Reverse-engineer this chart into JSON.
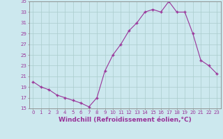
{
  "x": [
    0,
    1,
    2,
    3,
    4,
    5,
    6,
    7,
    8,
    9,
    10,
    11,
    12,
    13,
    14,
    15,
    16,
    17,
    18,
    19,
    20,
    21,
    22,
    23
  ],
  "y": [
    20.0,
    19.0,
    18.5,
    17.5,
    17.0,
    16.5,
    16.0,
    15.3,
    17.0,
    22.0,
    25.0,
    27.0,
    29.5,
    31.0,
    33.0,
    33.5,
    33.0,
    35.0,
    33.0,
    33.0,
    29.0,
    24.0,
    23.0,
    21.5
  ],
  "line_color": "#993399",
  "marker": "+",
  "marker_size": 3,
  "background_color": "#cce8ee",
  "grid_color": "#aacccc",
  "xlabel": "Windchill (Refroidissement éolien,°C)",
  "ylim": [
    15,
    35
  ],
  "xlim": [
    -0.5,
    23.5
  ],
  "yticks": [
    15,
    17,
    19,
    21,
    23,
    25,
    27,
    29,
    31,
    33,
    35
  ],
  "xticks": [
    0,
    1,
    2,
    3,
    4,
    5,
    6,
    7,
    8,
    9,
    10,
    11,
    12,
    13,
    14,
    15,
    16,
    17,
    18,
    19,
    20,
    21,
    22,
    23
  ],
  "tick_fontsize": 5,
  "xlabel_fontsize": 6.5,
  "spine_color": "#888888"
}
